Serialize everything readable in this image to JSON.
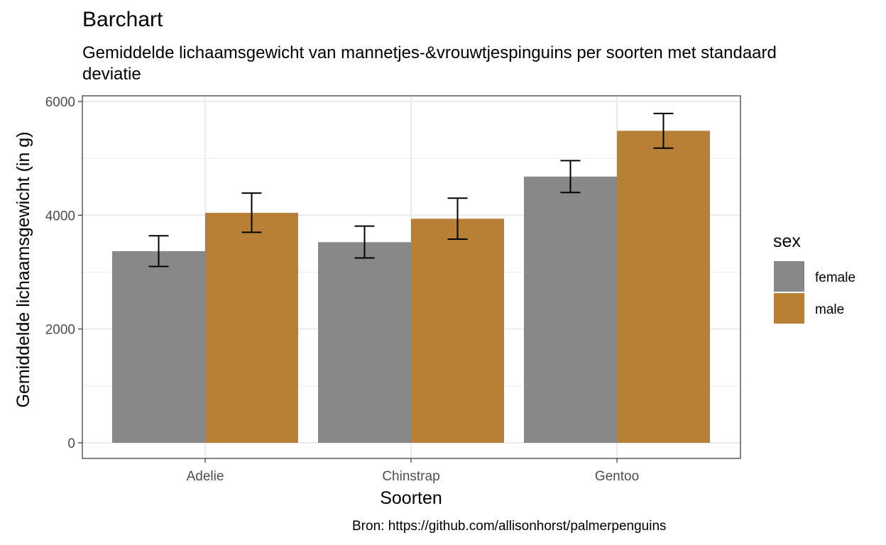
{
  "chart_data": {
    "type": "bar",
    "title": "Barchart",
    "subtitle": "Gemiddelde lichaamsgewicht van mannetjes-&vrouwtjespinguins per soorten met standaard deviatie",
    "caption": "Bron: https://github.com/allisonhorst/palmerpenguins",
    "xlabel": "Soorten",
    "ylabel": "Gemiddelde lichaamsgewicht (in g)",
    "categories": [
      "Adelie",
      "Chinstrap",
      "Gentoo"
    ],
    "ylim": [
      0,
      6000
    ],
    "yticks": [
      0,
      2000,
      4000,
      6000
    ],
    "grid": true,
    "legend": {
      "title": "sex",
      "position": "right"
    },
    "series": [
      {
        "name": "female",
        "color": "#888888",
        "values": [
          3369,
          3527,
          4680
        ],
        "error_low": [
          3100,
          3250,
          4400
        ],
        "error_high": [
          3640,
          3810,
          4960
        ]
      },
      {
        "name": "male",
        "color": "#b87f36",
        "values": [
          4043,
          3939,
          5485
        ],
        "error_low": [
          3700,
          3580,
          5180
        ],
        "error_high": [
          4390,
          4300,
          5790
        ]
      }
    ]
  }
}
